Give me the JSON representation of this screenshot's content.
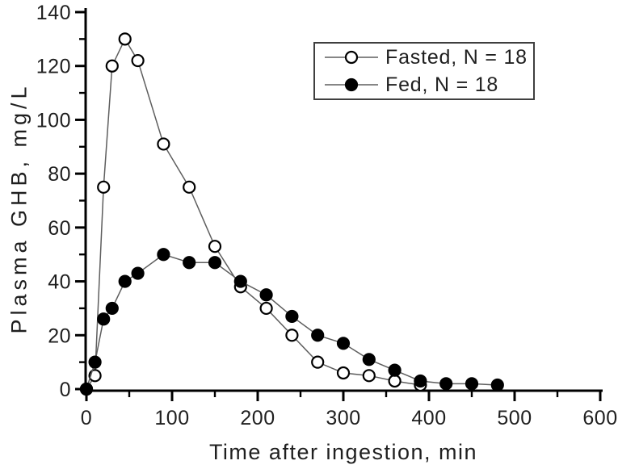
{
  "chart_data": {
    "type": "line",
    "title": "",
    "xlabel": "Time after ingestion, min",
    "ylabel": "Plasma GHB, mg/L",
    "xlim": [
      0,
      600
    ],
    "ylim": [
      0,
      140
    ],
    "x_major_ticks": [
      0,
      100,
      200,
      300,
      400,
      500,
      600
    ],
    "x_minor_tick_step": 50,
    "y_major_ticks": [
      0,
      20,
      40,
      60,
      80,
      100,
      120,
      140
    ],
    "y_minor_tick_step": 10,
    "grid": false,
    "legend_position": "upper-right-inset-box",
    "series": [
      {
        "name": "Fasted, N = 18",
        "marker": "open-circle",
        "x": [
          0,
          10,
          20,
          30,
          45,
          60,
          90,
          120,
          150,
          180,
          210,
          240,
          270,
          300,
          330,
          360,
          390
        ],
        "y": [
          0,
          5,
          75,
          120,
          130,
          122,
          91,
          75,
          53,
          38,
          30,
          20,
          10,
          6,
          5,
          3,
          1.5
        ]
      },
      {
        "name": "Fed, N = 18",
        "marker": "filled-circle",
        "x": [
          0,
          10,
          20,
          30,
          45,
          60,
          90,
          120,
          150,
          180,
          210,
          240,
          270,
          300,
          330,
          360,
          390,
          420,
          450,
          480
        ],
        "y": [
          0,
          10,
          26,
          30,
          40,
          43,
          50,
          47,
          47,
          40,
          35,
          27,
          20,
          17,
          11,
          7,
          3,
          2,
          2,
          1.5
        ]
      }
    ],
    "colors": {
      "background": "#ffffff",
      "axis": "#000000",
      "text": "#1f1f1f",
      "line": "#5e5e5e",
      "marker_stroke": "#000000",
      "open_marker_fill": "#ffffff",
      "filled_marker_fill": "#000000",
      "legend_border": "#3f3f3f"
    }
  }
}
